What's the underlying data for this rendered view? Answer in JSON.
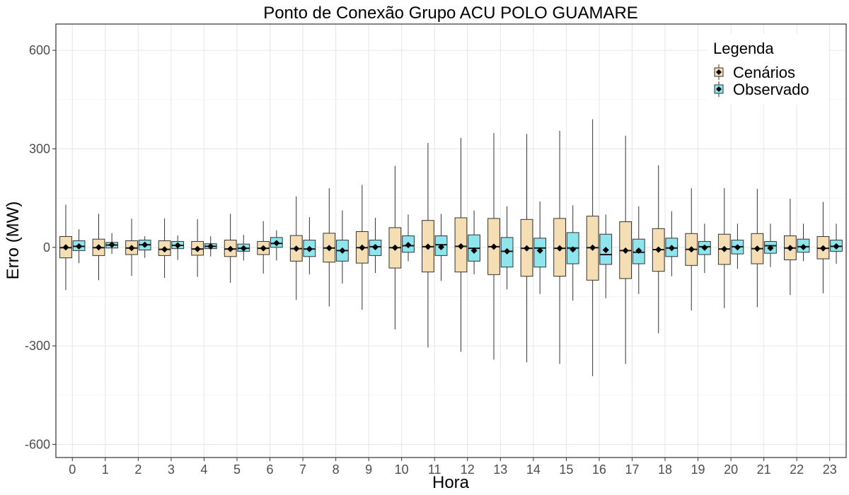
{
  "chart_data": {
    "type": "boxplot",
    "title": "Ponto de Conexão Grupo ACU POLO GUAMARE",
    "xlabel": "Hora",
    "ylabel": "Erro (MW)",
    "ylim": [
      -640,
      680
    ],
    "y_ticks": [
      600,
      300,
      0,
      -300,
      -600
    ],
    "y_tick_labels": [
      "600",
      "300",
      "0",
      "-300",
      "-600"
    ],
    "grid": true,
    "categories": [
      "0",
      "1",
      "2",
      "3",
      "4",
      "5",
      "6",
      "7",
      "8",
      "9",
      "10",
      "11",
      "12",
      "13",
      "14",
      "15",
      "16",
      "17",
      "18",
      "19",
      "20",
      "21",
      "22",
      "23"
    ],
    "legend": {
      "title": "Legenda",
      "position": "top-right",
      "entries": [
        "Cenários",
        "Observado"
      ]
    },
    "colors": {
      "Cenários": "#f5deb3",
      "Observado": "#8ee5ee"
    },
    "series": [
      {
        "name": "Cenários",
        "boxes": [
          {
            "min": -130,
            "q1": -32,
            "median": -1,
            "q3": 33,
            "max": 130,
            "mean": 0
          },
          {
            "min": -100,
            "q1": -25,
            "median": -1,
            "q3": 25,
            "max": 102,
            "mean": 0
          },
          {
            "min": -87,
            "q1": -22,
            "median": -2,
            "q3": 20,
            "max": 87,
            "mean": -2
          },
          {
            "min": -93,
            "q1": -25,
            "median": -6,
            "q3": 20,
            "max": 88,
            "mean": -6
          },
          {
            "min": -90,
            "q1": -24,
            "median": -5,
            "q3": 18,
            "max": 86,
            "mean": -5
          },
          {
            "min": -108,
            "q1": -28,
            "median": -5,
            "q3": 22,
            "max": 102,
            "mean": -5
          },
          {
            "min": -80,
            "q1": -22,
            "median": -3,
            "q3": 18,
            "max": 80,
            "mean": -3
          },
          {
            "min": -160,
            "q1": -42,
            "median": -4,
            "q3": 36,
            "max": 155,
            "mean": -4
          },
          {
            "min": -180,
            "q1": -45,
            "median": -2,
            "q3": 43,
            "max": 180,
            "mean": -2
          },
          {
            "min": -190,
            "q1": -48,
            "median": -1,
            "q3": 48,
            "max": 190,
            "mean": -1
          },
          {
            "min": -250,
            "q1": -63,
            "median": -1,
            "q3": 60,
            "max": 248,
            "mean": -1
          },
          {
            "min": -305,
            "q1": -75,
            "median": 2,
            "q3": 82,
            "max": 318,
            "mean": 2
          },
          {
            "min": -318,
            "q1": -75,
            "median": 3,
            "q3": 90,
            "max": 333,
            "mean": 3
          },
          {
            "min": -342,
            "q1": -83,
            "median": 2,
            "q3": 88,
            "max": 348,
            "mean": 2
          },
          {
            "min": -350,
            "q1": -88,
            "median": -3,
            "q3": 85,
            "max": 345,
            "mean": -3
          },
          {
            "min": -355,
            "q1": -88,
            "median": -3,
            "q3": 88,
            "max": 355,
            "mean": -3
          },
          {
            "min": -392,
            "q1": -100,
            "median": -1,
            "q3": 95,
            "max": 390,
            "mean": -1
          },
          {
            "min": -355,
            "q1": -95,
            "median": -10,
            "q3": 78,
            "max": 340,
            "mean": -10
          },
          {
            "min": -262,
            "q1": -73,
            "median": -7,
            "q3": 57,
            "max": 250,
            "mean": -7
          },
          {
            "min": -192,
            "q1": -55,
            "median": -6,
            "q3": 42,
            "max": 180,
            "mean": -6
          },
          {
            "min": -185,
            "q1": -52,
            "median": -5,
            "q3": 40,
            "max": 180,
            "mean": -5
          },
          {
            "min": -182,
            "q1": -50,
            "median": -4,
            "q3": 42,
            "max": 178,
            "mean": -4
          },
          {
            "min": -145,
            "q1": -38,
            "median": -2,
            "q3": 35,
            "max": 148,
            "mean": -2
          },
          {
            "min": -140,
            "q1": -35,
            "median": -3,
            "q3": 33,
            "max": 138,
            "mean": -3
          }
        ]
      },
      {
        "name": "Observado",
        "boxes": [
          {
            "min": -48,
            "q1": -10,
            "median": 3,
            "q3": 20,
            "max": 55,
            "mean": 3
          },
          {
            "min": -20,
            "q1": -2,
            "median": 7,
            "q3": 15,
            "max": 43,
            "mean": 8
          },
          {
            "min": -32,
            "q1": -8,
            "median": 8,
            "q3": 22,
            "max": 34,
            "mean": 8
          },
          {
            "min": -38,
            "q1": -4,
            "median": 6,
            "q3": 18,
            "max": 36,
            "mean": 6
          },
          {
            "min": -28,
            "q1": -4,
            "median": 3,
            "q3": 11,
            "max": 34,
            "mean": 3
          },
          {
            "min": -40,
            "q1": -12,
            "median": -3,
            "q3": 10,
            "max": 38,
            "mean": -3
          },
          {
            "min": -40,
            "q1": 0,
            "median": 12,
            "q3": 30,
            "max": 52,
            "mean": 13
          },
          {
            "min": -82,
            "q1": -28,
            "median": -5,
            "q3": 22,
            "max": 92,
            "mean": -5
          },
          {
            "min": -110,
            "q1": -42,
            "median": -10,
            "q3": 22,
            "max": 112,
            "mean": -10
          },
          {
            "min": -78,
            "q1": -25,
            "median": 2,
            "q3": 22,
            "max": 90,
            "mean": 1
          },
          {
            "min": -42,
            "q1": -15,
            "median": 5,
            "q3": 35,
            "max": 100,
            "mean": 7
          },
          {
            "min": -102,
            "q1": -25,
            "median": 8,
            "q3": 35,
            "max": 102,
            "mean": 1
          },
          {
            "min": -82,
            "q1": -42,
            "median": -3,
            "q3": 38,
            "max": 112,
            "mean": -10
          },
          {
            "min": -128,
            "q1": -60,
            "median": -12,
            "q3": 30,
            "max": 125,
            "mean": -12
          },
          {
            "min": -142,
            "q1": -60,
            "median": -2,
            "q3": 28,
            "max": 140,
            "mean": -10
          },
          {
            "min": -162,
            "q1": -50,
            "median": -2,
            "q3": 45,
            "max": 128,
            "mean": -6
          },
          {
            "min": -155,
            "q1": -52,
            "median": -22,
            "q3": 40,
            "max": 100,
            "mean": -8
          },
          {
            "min": -142,
            "q1": -50,
            "median": -15,
            "q3": 25,
            "max": 125,
            "mean": -10
          },
          {
            "min": -88,
            "q1": -28,
            "median": -2,
            "q3": 28,
            "max": 110,
            "mean": -2
          },
          {
            "min": -78,
            "q1": -22,
            "median": 2,
            "q3": 18,
            "max": 72,
            "mean": -1
          },
          {
            "min": -65,
            "q1": -20,
            "median": 2,
            "q3": 22,
            "max": 72,
            "mean": 0
          },
          {
            "min": -60,
            "q1": -18,
            "median": 5,
            "q3": 18,
            "max": 72,
            "mean": -2
          },
          {
            "min": -42,
            "q1": -15,
            "median": 2,
            "q3": 25,
            "max": 72,
            "mean": 1
          },
          {
            "min": -50,
            "q1": -12,
            "median": 3,
            "q3": 22,
            "max": 72,
            "mean": 3
          }
        ]
      }
    ]
  }
}
